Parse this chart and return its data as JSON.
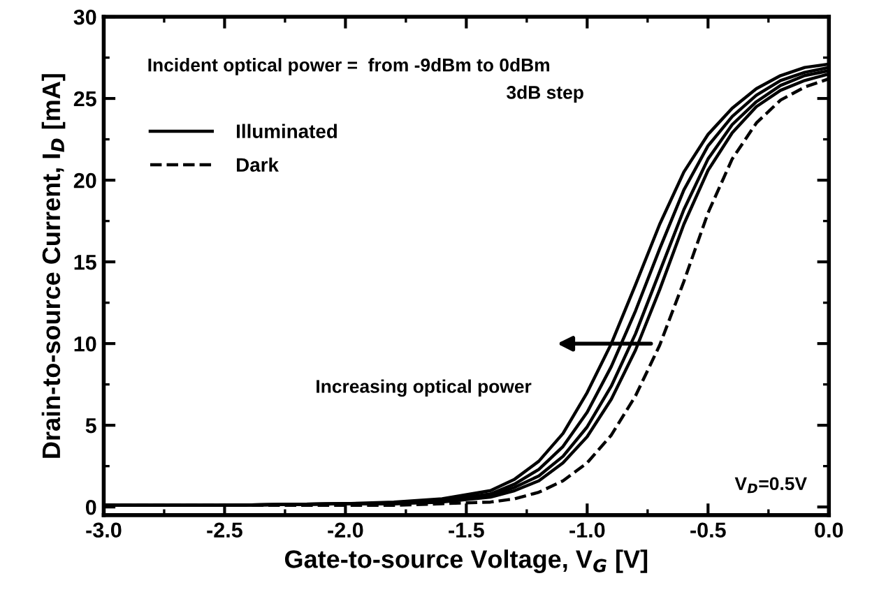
{
  "chart_data": {
    "type": "line",
    "xlabel": "Gate-to-source Voltage, V$_{G}$ [V]",
    "ylabel": "Drain-to-source Current, I$_{D}$ [mA]",
    "x": [
      -3.0,
      -2.5,
      -2.0,
      -1.8,
      -1.6,
      -1.4,
      -1.3,
      -1.2,
      -1.1,
      -1.0,
      -0.9,
      -0.8,
      -0.7,
      -0.6,
      -0.5,
      -0.4,
      -0.3,
      -0.2,
      -0.1,
      0.0
    ],
    "series": [
      {
        "name": "Illuminated",
        "color": "#000000",
        "line_style": "solid",
        "values": [
          0.1,
          0.1,
          0.2,
          0.3,
          0.5,
          1.0,
          1.7,
          2.8,
          4.5,
          7.0,
          10.0,
          13.6,
          17.3,
          20.5,
          22.8,
          24.4,
          25.6,
          26.4,
          26.9,
          27.1
        ]
      },
      {
        "color": "#000000",
        "line_style": "solid",
        "values": [
          0.1,
          0.1,
          0.2,
          0.2,
          0.4,
          0.8,
          1.4,
          2.3,
          3.7,
          5.8,
          8.6,
          12.0,
          15.8,
          19.4,
          22.1,
          23.9,
          25.2,
          26.1,
          26.6,
          26.9
        ]
      },
      {
        "color": "#000000",
        "line_style": "solid",
        "values": [
          0.1,
          0.1,
          0.2,
          0.2,
          0.4,
          0.7,
          1.2,
          1.9,
          3.1,
          4.9,
          7.4,
          10.6,
          14.4,
          18.2,
          21.3,
          23.4,
          24.8,
          25.8,
          26.4,
          26.7
        ]
      },
      {
        "color": "#000000",
        "line_style": "solid",
        "values": [
          0.1,
          0.1,
          0.2,
          0.2,
          0.3,
          0.6,
          1.0,
          1.6,
          2.7,
          4.3,
          6.6,
          9.6,
          13.3,
          17.3,
          20.6,
          22.9,
          24.5,
          25.5,
          26.1,
          26.5
        ]
      },
      {
        "name": "Dark",
        "color": "#000000",
        "line_style": "dashed",
        "values": [
          0.1,
          0.1,
          0.1,
          0.1,
          0.2,
          0.3,
          0.5,
          0.9,
          1.6,
          2.7,
          4.4,
          6.8,
          9.9,
          13.8,
          18.0,
          21.3,
          23.5,
          24.9,
          25.7,
          26.2
        ]
      }
    ],
    "xlim": [
      -3.0,
      0.0
    ],
    "xticks": [
      {
        "value": -3.0,
        "label": "-3.0"
      },
      {
        "value": -2.5,
        "label": "-2.5"
      },
      {
        "value": -2.0,
        "label": "-2.0"
      },
      {
        "value": -1.5,
        "label": "-1.5"
      },
      {
        "value": -1.0,
        "label": "-1.0"
      },
      {
        "value": -0.5,
        "label": "-0.5"
      },
      {
        "value": 0.0,
        "label": "0.0"
      }
    ],
    "ylim": [
      -0.5,
      30
    ],
    "yticks": [
      0,
      5,
      10,
      15,
      20,
      25,
      30
    ],
    "grid": false,
    "legend": "top left",
    "marker": "none",
    "annotations": [
      "Incident optical power =  from -9dBm to 0dBm",
      "3dB step",
      "Increasing optical power",
      "V$_{D}$=0.5V"
    ]
  }
}
